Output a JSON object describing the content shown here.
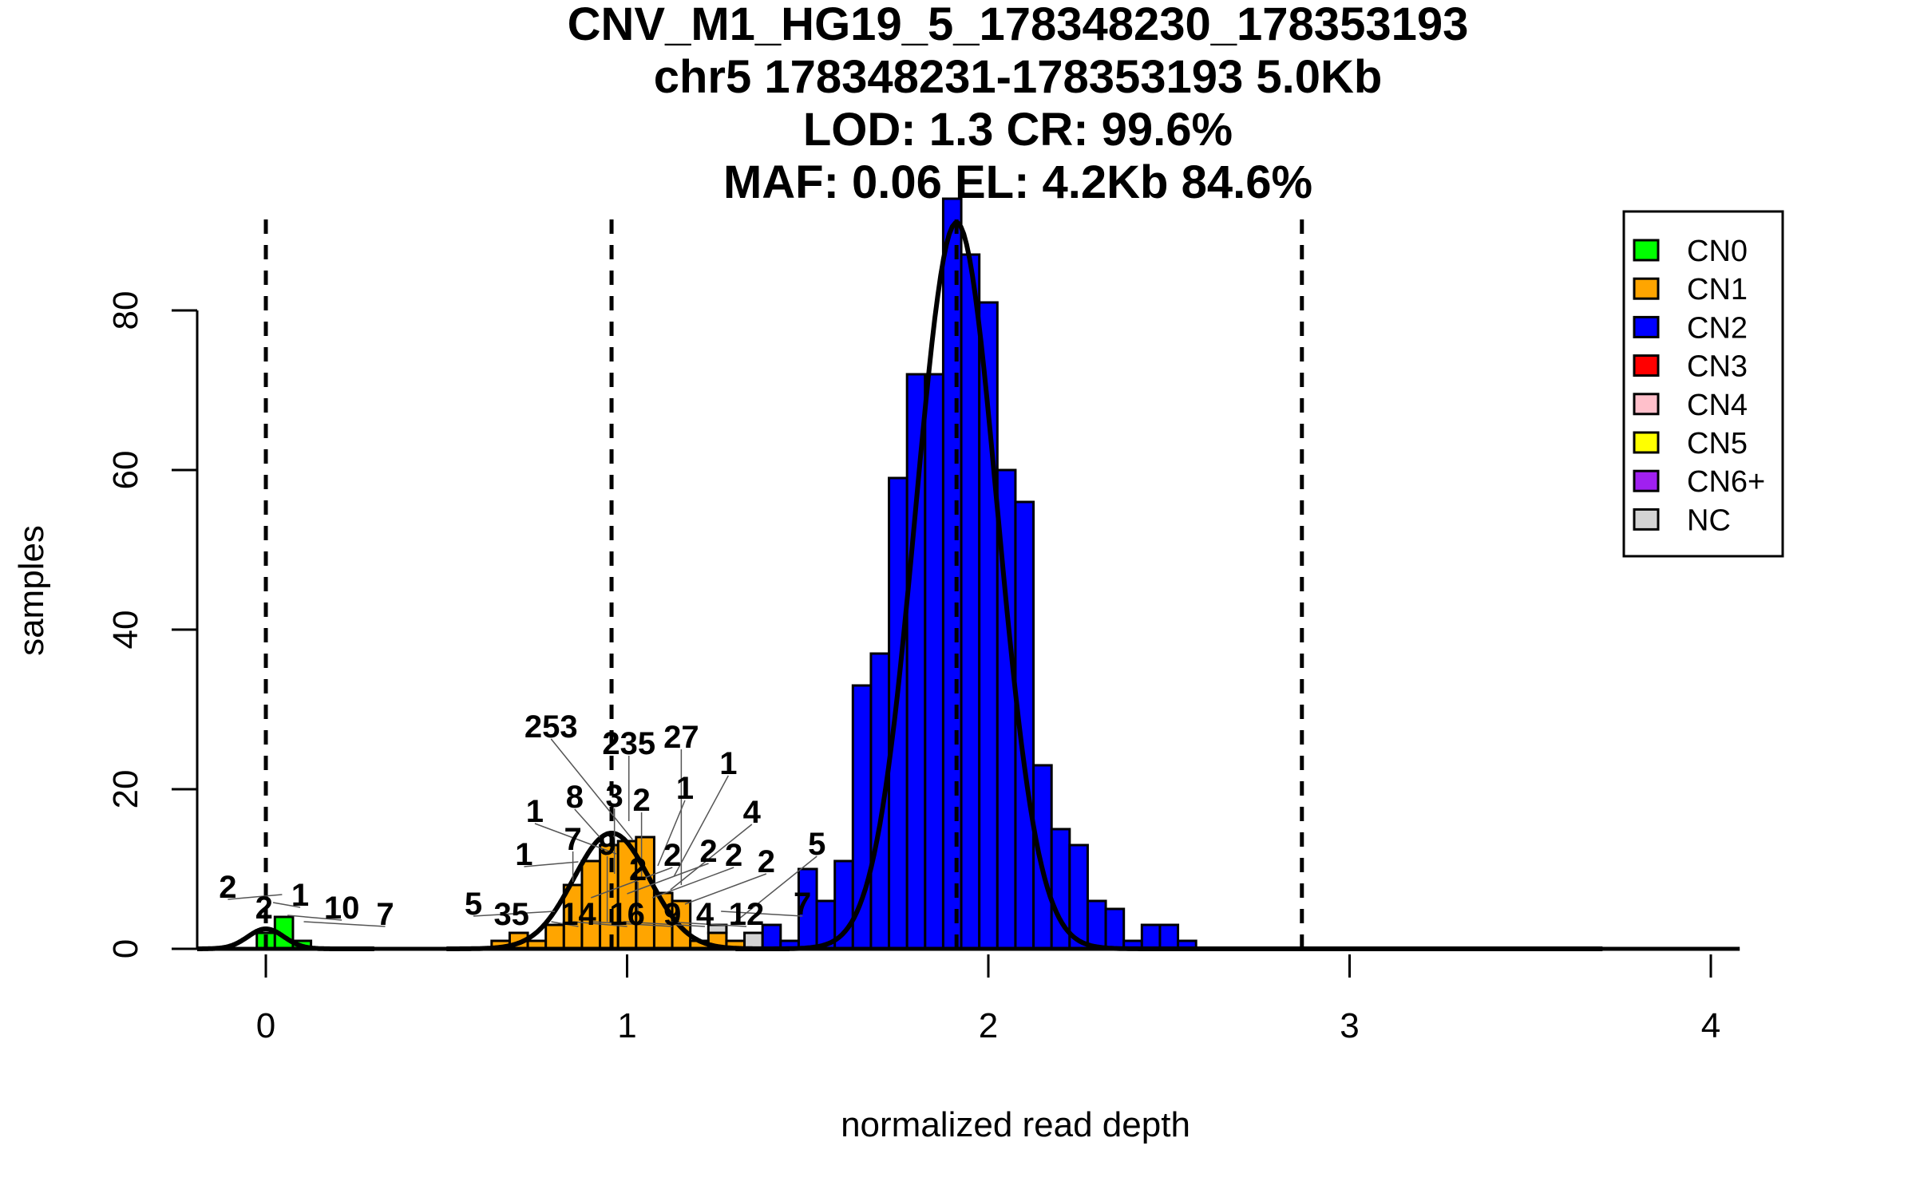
{
  "chart_data": {
    "type": "bar",
    "subtype": "stacked-histogram-with-density",
    "title_lines": [
      "CNV_M1_HG19_5_178348230_178353193",
      "chr5 178348231-178353193 5.0Kb",
      "LOD: 1.3 CR: 99.6%",
      "MAF: 0.06 EL: 4.2Kb 84.6%"
    ],
    "xlabel": "normalized read depth",
    "ylabel": "samples",
    "xlim": [
      -0.19,
      4.13
    ],
    "ylim": [
      0,
      92
    ],
    "x_ticks": [
      "0",
      "1",
      "2",
      "3",
      "4"
    ],
    "y_ticks": [
      "0",
      "20",
      "40",
      "60",
      "80"
    ],
    "grid": false,
    "legend_position": "top-right",
    "legend": [
      {
        "label": "CN0",
        "color": "#00ff00"
      },
      {
        "label": "CN1",
        "color": "#ffa500"
      },
      {
        "label": "CN2",
        "color": "#0000ff"
      },
      {
        "label": "CN3",
        "color": "#ff0000"
      },
      {
        "label": "CN4",
        "color": "#ffc0cb"
      },
      {
        "label": "CN5",
        "color": "#ffff00"
      },
      {
        "label": "CN6+",
        "color": "#a020f0"
      },
      {
        "label": "NC",
        "color": "#d3d3d3"
      }
    ],
    "bin_width": 0.05,
    "bins": [
      {
        "x0": -0.025,
        "CN0": 2
      },
      {
        "x0": 0.025,
        "CN0": 4
      },
      {
        "x0": 0.075,
        "CN0": 1
      },
      {
        "x0": 0.625,
        "CN1": 1
      },
      {
        "x0": 0.675,
        "CN1": 2
      },
      {
        "x0": 0.725,
        "CN1": 1
      },
      {
        "x0": 0.775,
        "CN1": 3
      },
      {
        "x0": 0.825,
        "CN1": 8
      },
      {
        "x0": 0.875,
        "CN1": 11
      },
      {
        "x0": 0.925,
        "CN1": 13
      },
      {
        "x0": 0.975,
        "CN1": 13.5
      },
      {
        "x0": 1.025,
        "CN1": 14
      },
      {
        "x0": 1.075,
        "CN1": 7
      },
      {
        "x0": 1.125,
        "CN1": 6
      },
      {
        "x0": 1.175,
        "CN1": 1
      },
      {
        "x0": 1.225,
        "CN1": 2,
        "NC": 1
      },
      {
        "x0": 1.275,
        "CN1": 1
      },
      {
        "x0": 1.325,
        "NC": 2
      },
      {
        "x0": 1.375,
        "CN2": 3
      },
      {
        "x0": 1.425,
        "CN2": 1
      },
      {
        "x0": 1.475,
        "CN2": 10
      },
      {
        "x0": 1.525,
        "CN2": 6
      },
      {
        "x0": 1.575,
        "CN2": 11
      },
      {
        "x0": 1.625,
        "CN2": 33
      },
      {
        "x0": 1.675,
        "CN2": 37
      },
      {
        "x0": 1.725,
        "CN2": 59
      },
      {
        "x0": 1.775,
        "CN2": 72
      },
      {
        "x0": 1.825,
        "CN2": 72
      },
      {
        "x0": 1.875,
        "CN2": 94
      },
      {
        "x0": 1.925,
        "CN2": 87
      },
      {
        "x0": 1.975,
        "CN2": 81
      },
      {
        "x0": 2.025,
        "CN2": 60
      },
      {
        "x0": 2.075,
        "CN2": 56
      },
      {
        "x0": 2.125,
        "CN2": 23
      },
      {
        "x0": 2.175,
        "CN2": 15
      },
      {
        "x0": 2.225,
        "CN2": 13
      },
      {
        "x0": 2.275,
        "CN2": 6
      },
      {
        "x0": 2.325,
        "CN2": 5
      },
      {
        "x0": 2.375,
        "CN2": 1
      },
      {
        "x0": 2.425,
        "CN2": 3
      },
      {
        "x0": 2.475,
        "CN2": 3
      },
      {
        "x0": 2.525,
        "CN2": 1
      }
    ],
    "density_curves": [
      {
        "name": "CN0",
        "mean": 0.0,
        "sd": 0.05,
        "peak": 2.5,
        "range": [
          -0.19,
          0.3
        ]
      },
      {
        "name": "CN1",
        "mean": 0.957,
        "sd": 0.105,
        "peak": 14.5,
        "range": [
          0.5,
          1.45
        ]
      },
      {
        "name": "CN2",
        "mean": 1.912,
        "sd": 0.113,
        "peak": 91,
        "range": [
          1.3,
          3.7
        ]
      }
    ],
    "dashed_lines_x": [
      0.0,
      0.957,
      1.912,
      2.868
    ],
    "bar_annotations": [
      {
        "text": "2",
        "x": -0.005,
        "y": 3.8
      },
      {
        "text": "1",
        "x": 0.02,
        "y": 5.4
      },
      {
        "text": "2",
        "x": 0.045,
        "y": 6.4
      },
      {
        "text": "10",
        "x": 0.06,
        "y": 3.8
      },
      {
        "text": "7",
        "x": 0.105,
        "y": 3.0
      },
      {
        "text": "35",
        "x": 0.68,
        "y": 3.0
      },
      {
        "text": "14",
        "x": 0.79,
        "y": 3.0
      },
      {
        "text": "5",
        "x": 0.8,
        "y": 4.3
      },
      {
        "text": "16",
        "x": 0.85,
        "y": 3.0
      },
      {
        "text": "9",
        "x": 0.9,
        "y": 3.0
      },
      {
        "text": "9",
        "x": 0.945,
        "y": 3.0
      },
      {
        "text": "4",
        "x": 0.99,
        "y": 3.0
      },
      {
        "text": "2",
        "x": 1.03,
        "y": 4.2
      },
      {
        "text": "12",
        "x": 1.105,
        "y": 3.0
      },
      {
        "text": "7",
        "x": 0.85,
        "y": 8.0
      },
      {
        "text": "1",
        "x": 0.865,
        "y": 10.5
      },
      {
        "text": "2",
        "x": 0.9,
        "y": 6.0
      },
      {
        "text": "3",
        "x": 0.965,
        "y": 9.0
      },
      {
        "text": "2",
        "x": 1.0,
        "y": 6.5
      },
      {
        "text": "2",
        "x": 1.04,
        "y": 8.5
      },
      {
        "text": "2",
        "x": 1.07,
        "y": 6.0
      },
      {
        "text": "1",
        "x": 1.085,
        "y": 10.0
      },
      {
        "text": "4",
        "x": 1.12,
        "y": 7.0
      },
      {
        "text": "1",
        "x": 1.13,
        "y": 8.7
      },
      {
        "text": "27",
        "x": 1.15,
        "y": 7.6
      },
      {
        "text": "2",
        "x": 1.16,
        "y": 5.2
      },
      {
        "text": "8",
        "x": 0.93,
        "y": 13.3
      },
      {
        "text": "1",
        "x": 0.97,
        "y": 11.5
      },
      {
        "text": "235",
        "x": 1.005,
        "y": 15.6
      },
      {
        "text": "253",
        "x": 1.015,
        "y": 13.3
      },
      {
        "text": "7",
        "x": 1.26,
        "y": 4.3
      },
      {
        "text": "5",
        "x": 1.3,
        "y": 3.0
      }
    ]
  }
}
